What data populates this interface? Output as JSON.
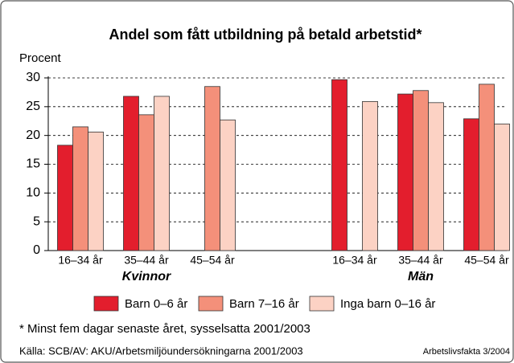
{
  "chart_data": {
    "type": "bar",
    "title": "Andel som fått utbildning på betald arbetstid*",
    "y_label": "Procent",
    "categories": [
      "16–34 år",
      "35–44 år",
      "45–54 år",
      "16–34 år",
      "35–44 år",
      "45–54 år"
    ],
    "groups": [
      "Kvinnor",
      "Män"
    ],
    "series": [
      {
        "name": "Barn 0–6 år",
        "color": "#e31e2d",
        "values": [
          18.3,
          26.8,
          null,
          29.7,
          27.2,
          22.9
        ]
      },
      {
        "name": "Barn 7–16 år",
        "color": "#f4907a",
        "values": [
          21.5,
          23.6,
          28.5,
          null,
          27.8,
          28.9
        ]
      },
      {
        "name": "Inga barn 0–16 år",
        "color": "#fcd2c4",
        "values": [
          20.6,
          26.8,
          22.7,
          25.9,
          25.7,
          22.0
        ]
      }
    ],
    "ylim": [
      0,
      30
    ],
    "yticks": [
      0,
      5,
      10,
      15,
      20,
      25,
      30
    ],
    "grid": true,
    "footnote": "* Minst fem dagar senaste året, sysselsatta 2001/2003",
    "source": "Källa: SCB/AV: AKU/Arbetsmiljöundersökningarna 2001/2003",
    "publication": "Arbetslivsfakta 3/2004"
  }
}
